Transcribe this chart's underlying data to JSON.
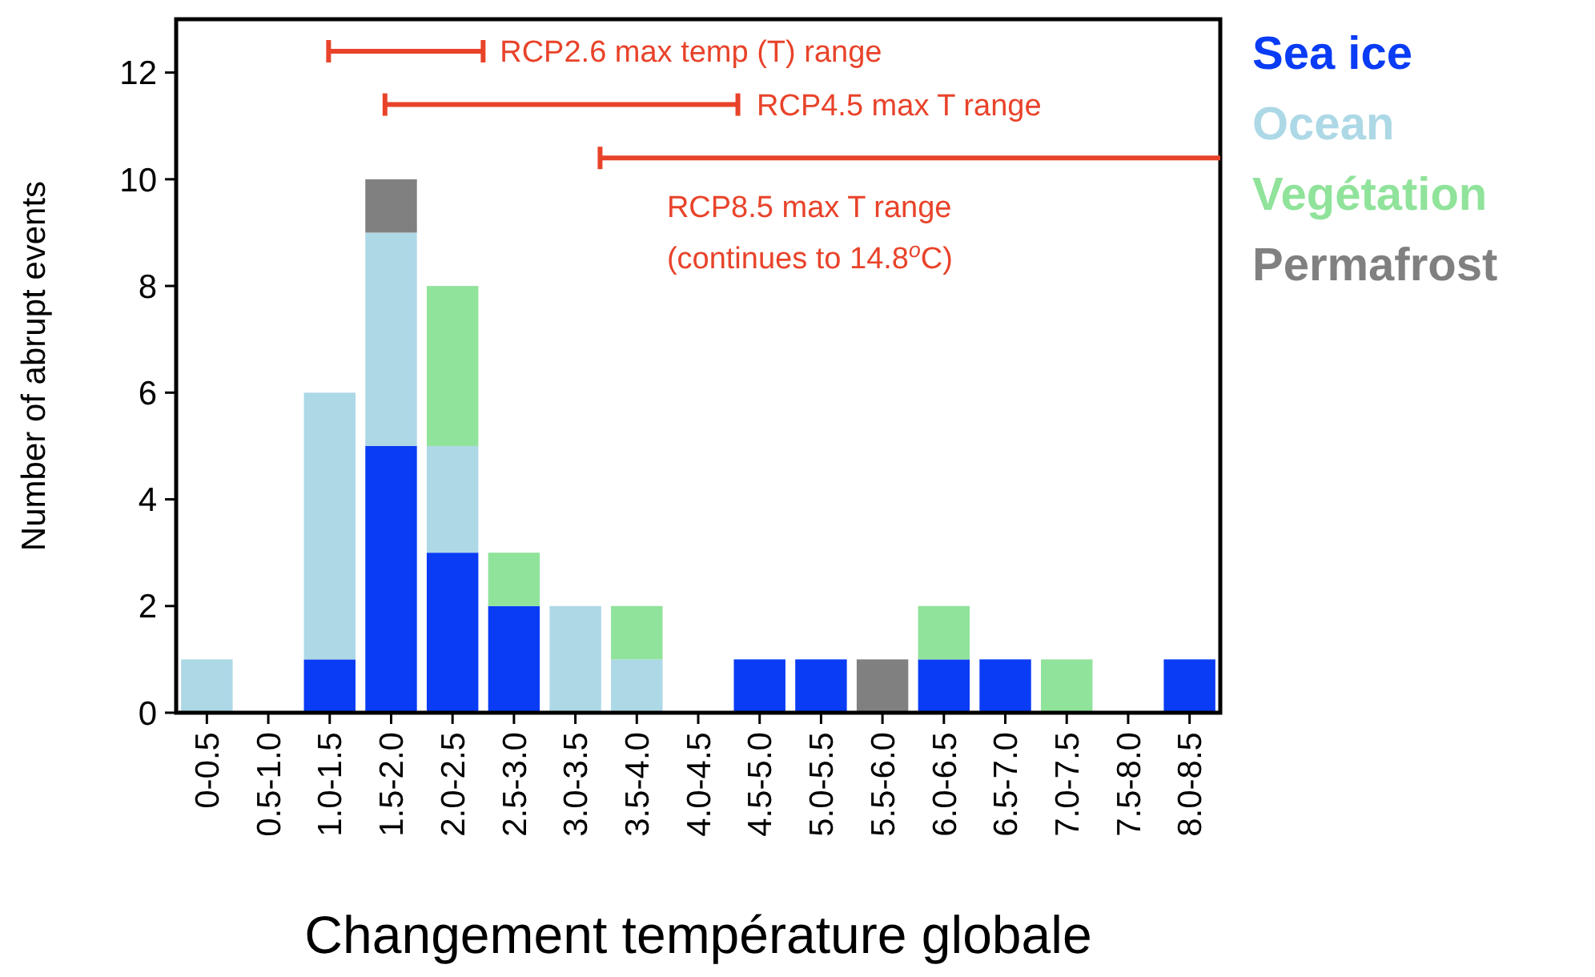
{
  "chart_data": {
    "type": "bar",
    "stacked": true,
    "xlabel": "Changement température globale",
    "ylabel": "Number of abrupt events",
    "categories": [
      "0-0.5",
      "0.5-1.0",
      "1.0-1.5",
      "1.5-2.0",
      "2.0-2.5",
      "2.5-3.0",
      "3.0-3.5",
      "3.5-4.0",
      "4.0-4.5",
      "4.5-5.0",
      "5.0-5.5",
      "5.5-6.0",
      "6.0-6.5",
      "6.5-7.0",
      "7.0-7.5",
      "7.5-8.0",
      "8.0-8.5"
    ],
    "series": [
      {
        "name": "Sea ice",
        "color": "#0a3cf5",
        "values": [
          0,
          0,
          1,
          5,
          3,
          2,
          0,
          0,
          0,
          1,
          1,
          0,
          1,
          1,
          0,
          0,
          1
        ]
      },
      {
        "name": "Ocean",
        "color": "#add8e6",
        "values": [
          1,
          0,
          5,
          4,
          2,
          0,
          2,
          1,
          0,
          0,
          0,
          0,
          0,
          0,
          0,
          0,
          0
        ]
      },
      {
        "name": "Vegétation",
        "color": "#90e39a",
        "values": [
          0,
          0,
          0,
          0,
          3,
          1,
          0,
          1,
          0,
          0,
          0,
          0,
          1,
          0,
          1,
          0,
          0
        ]
      },
      {
        "name": "Permafrost",
        "color": "#808080",
        "values": [
          0,
          0,
          0,
          1,
          0,
          0,
          0,
          0,
          0,
          0,
          0,
          1,
          0,
          0,
          0,
          0,
          0
        ]
      }
    ],
    "ylim": [
      0,
      13
    ],
    "yticks": [
      0,
      2,
      4,
      6,
      8,
      10,
      12
    ],
    "grid": false,
    "legend": "right",
    "annotations": [
      "RCP2.6 max temp (T) range",
      "RCP4.5 max T range",
      "RCP8.5 max T range\n(continues to 14.8$^{o}$C)"
    ]
  }
}
